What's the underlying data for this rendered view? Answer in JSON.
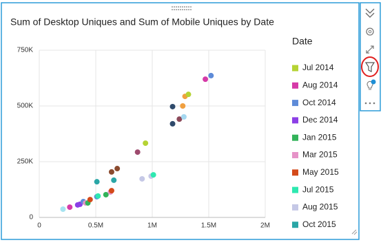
{
  "chart_data": {
    "type": "scatter",
    "title": "Sum of Desktop Uniques and Sum of Mobile Uniques by Date",
    "legend_title": "Date",
    "legend": [
      {
        "name": "Jul 2014",
        "color": "#b5d334"
      },
      {
        "name": "Aug 2014",
        "color": "#d63aa8"
      },
      {
        "name": "Oct 2014",
        "color": "#5e8bd8"
      },
      {
        "name": "Dec 2014",
        "color": "#8c3fe6"
      },
      {
        "name": "Jan 2015",
        "color": "#33b35a"
      },
      {
        "name": "Mar 2015",
        "color": "#e693c8"
      },
      {
        "name": "May 2015",
        "color": "#d44a1a"
      },
      {
        "name": "Jul 2015",
        "color": "#2ee8b0"
      },
      {
        "name": "Aug 2015",
        "color": "#c5c8e6"
      },
      {
        "name": "Oct 2015",
        "color": "#2aa6a6"
      }
    ],
    "points": [
      {
        "x": 210000,
        "y": 37000,
        "color": "#a6e3f0"
      },
      {
        "x": 270000,
        "y": 46000,
        "color": "#d63aa8"
      },
      {
        "x": 340000,
        "y": 56000,
        "color": "#8c3fe6"
      },
      {
        "x": 360000,
        "y": 59000,
        "color": "#8c3fe6"
      },
      {
        "x": 390000,
        "y": 71000,
        "color": "#5e8bd8"
      },
      {
        "x": 410000,
        "y": 65000,
        "color": "#e693c8"
      },
      {
        "x": 430000,
        "y": 65000,
        "color": "#33b35a"
      },
      {
        "x": 450000,
        "y": 80000,
        "color": "#d44a1a"
      },
      {
        "x": 510000,
        "y": 93000,
        "color": "#5e8bd8"
      },
      {
        "x": 520000,
        "y": 96000,
        "color": "#2ee8b0"
      },
      {
        "x": 590000,
        "y": 102000,
        "color": "#33b35a"
      },
      {
        "x": 630000,
        "y": 114000,
        "color": "#e693c8"
      },
      {
        "x": 640000,
        "y": 120000,
        "color": "#d44a1a"
      },
      {
        "x": 510000,
        "y": 160000,
        "color": "#2aa6a6"
      },
      {
        "x": 660000,
        "y": 167000,
        "color": "#2aa6a6"
      },
      {
        "x": 640000,
        "y": 204000,
        "color": "#8b4b2f"
      },
      {
        "x": 690000,
        "y": 219000,
        "color": "#8b4b2f"
      },
      {
        "x": 910000,
        "y": 173000,
        "color": "#c5c8e6"
      },
      {
        "x": 990000,
        "y": 185000,
        "color": "#c5c8e6"
      },
      {
        "x": 1010000,
        "y": 191000,
        "color": "#2ee8b0"
      },
      {
        "x": 870000,
        "y": 293000,
        "color": "#9e4a6e"
      },
      {
        "x": 940000,
        "y": 333000,
        "color": "#b5d334"
      },
      {
        "x": 1180000,
        "y": 420000,
        "color": "#2f4a6b"
      },
      {
        "x": 1240000,
        "y": 441000,
        "color": "#8c4a5a"
      },
      {
        "x": 1280000,
        "y": 451000,
        "color": "#a6d8f0"
      },
      {
        "x": 1180000,
        "y": 497000,
        "color": "#2f4a6b"
      },
      {
        "x": 1270000,
        "y": 500000,
        "color": "#f0a040"
      },
      {
        "x": 1290000,
        "y": 543000,
        "color": "#f0a040"
      },
      {
        "x": 1320000,
        "y": 552000,
        "color": "#b5d334"
      },
      {
        "x": 1470000,
        "y": 620000,
        "color": "#d63aa8"
      },
      {
        "x": 1520000,
        "y": 636000,
        "color": "#5e8bd8"
      }
    ],
    "xlim": [
      0,
      2000000
    ],
    "ylim": [
      0,
      750000
    ],
    "xticks": [
      0,
      {
        "value": 500000,
        "label": "0.5M"
      },
      {
        "value": 1000000,
        "label": "1M"
      },
      {
        "value": 1500000,
        "label": "1.5M"
      },
      {
        "value": 2000000,
        "label": "2M"
      }
    ],
    "yticks": [
      0,
      {
        "value": 250000,
        "label": "250K"
      },
      {
        "value": 500000,
        "label": "500K"
      },
      {
        "value": 750000,
        "label": "750K"
      }
    ],
    "grid": true
  }
}
